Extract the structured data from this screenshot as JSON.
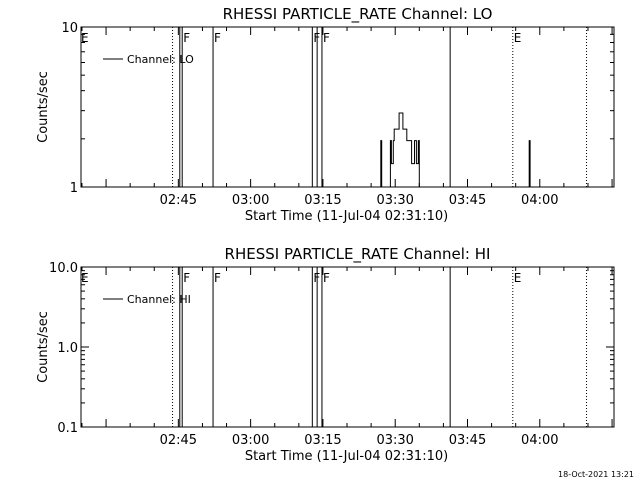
{
  "footer": {
    "timestamp": "18-Oct-2021 13:21"
  },
  "flags": {
    "eclipse": "E",
    "flare": "F"
  },
  "chart_data": [
    {
      "type": "line",
      "title": "RHESSI PARTICLE_RATE Channel: LO",
      "xlabel": "Start Time (11-Jul-04 02:31:10)",
      "ylabel": "Counts/sec",
      "y_scale": "log",
      "ylim": [
        1,
        10
      ],
      "y_ticks": [
        {
          "value": 1,
          "label": "1"
        },
        {
          "value": 10,
          "label": "10"
        }
      ],
      "xlim_minutes": [
        -6.2,
        104.4
      ],
      "x_ticks": [
        {
          "min": 14,
          "label": "02:45"
        },
        {
          "min": 29,
          "label": "03:00"
        },
        {
          "min": 44,
          "label": "03:15"
        },
        {
          "min": 59,
          "label": "03:30"
        },
        {
          "min": 74,
          "label": "03:45"
        },
        {
          "min": 89,
          "label": "04:00"
        }
      ],
      "legend": {
        "label": "Channel: LO",
        "position": "top-left"
      },
      "events": [
        {
          "min": -6.0,
          "style": "none",
          "flag": "E"
        },
        {
          "min": 12.8,
          "style": "dotted",
          "flag": ""
        },
        {
          "min": 14.3,
          "style": "solid",
          "flag": ""
        },
        {
          "min": 14.8,
          "style": "solid",
          "flag": "F"
        },
        {
          "min": 21.2,
          "style": "solid",
          "flag": "F"
        },
        {
          "min": 41.8,
          "style": "solid",
          "flag": "F"
        },
        {
          "min": 42.8,
          "style": "solid",
          "flag": ""
        },
        {
          "min": 43.8,
          "style": "solid",
          "flag": "F"
        },
        {
          "min": 70.4,
          "style": "solid",
          "flag": ""
        },
        {
          "min": 83.4,
          "style": "dotted",
          "flag": "E"
        },
        {
          "min": 98.7,
          "style": "dotted",
          "flag": ""
        }
      ],
      "series": [
        {
          "name": "Channel: LO",
          "x": [
            56.0,
            56.0,
            56.2,
            56.2,
            58.0,
            58.0,
            58.2,
            58.2,
            58.6,
            58.6,
            58.8,
            58.8,
            59.8,
            59.8,
            60.6,
            60.6,
            61.4,
            61.4,
            62.4,
            62.4,
            63.0,
            63.0,
            63.4,
            63.4,
            63.8,
            63.8,
            64.0,
            64.0,
            86.8,
            86.8,
            87.0,
            87.0
          ],
          "y": [
            1.0,
            1.95,
            1.95,
            1.0,
            1.0,
            1.95,
            1.95,
            1.4,
            1.4,
            1.95,
            1.95,
            2.3,
            2.3,
            2.9,
            2.9,
            2.3,
            2.3,
            1.95,
            1.95,
            1.4,
            1.4,
            1.95,
            1.95,
            1.4,
            1.4,
            1.95,
            1.95,
            1.0,
            1.0,
            1.95,
            1.95,
            1.0
          ]
        }
      ]
    },
    {
      "type": "line",
      "title": "RHESSI PARTICLE_RATE Channel: HI",
      "xlabel": "Start Time (11-Jul-04 02:31:10)",
      "ylabel": "Counts/sec",
      "y_scale": "log",
      "ylim": [
        0.1,
        10
      ],
      "y_ticks": [
        {
          "value": 0.1,
          "label": "0.1"
        },
        {
          "value": 1,
          "label": "1.0"
        },
        {
          "value": 10,
          "label": "10.0"
        }
      ],
      "xlim_minutes": [
        -6.2,
        104.4
      ],
      "x_ticks": [
        {
          "min": 14,
          "label": "02:45"
        },
        {
          "min": 29,
          "label": "03:00"
        },
        {
          "min": 44,
          "label": "03:15"
        },
        {
          "min": 59,
          "label": "03:30"
        },
        {
          "min": 74,
          "label": "03:45"
        },
        {
          "min": 89,
          "label": "04:00"
        }
      ],
      "legend": {
        "label": "Channel: HI",
        "position": "top-left"
      },
      "events": [
        {
          "min": -6.0,
          "style": "none",
          "flag": "E"
        },
        {
          "min": 12.8,
          "style": "dotted",
          "flag": ""
        },
        {
          "min": 14.3,
          "style": "solid",
          "flag": ""
        },
        {
          "min": 14.8,
          "style": "solid",
          "flag": "F"
        },
        {
          "min": 21.2,
          "style": "solid",
          "flag": "F"
        },
        {
          "min": 41.8,
          "style": "solid",
          "flag": "F"
        },
        {
          "min": 42.8,
          "style": "solid",
          "flag": ""
        },
        {
          "min": 43.8,
          "style": "solid",
          "flag": "F"
        },
        {
          "min": 70.4,
          "style": "solid",
          "flag": ""
        },
        {
          "min": 83.4,
          "style": "dotted",
          "flag": "E"
        },
        {
          "min": 98.7,
          "style": "dotted",
          "flag": ""
        }
      ],
      "series": [
        {
          "name": "Channel: HI",
          "x": [],
          "y": []
        }
      ]
    }
  ]
}
